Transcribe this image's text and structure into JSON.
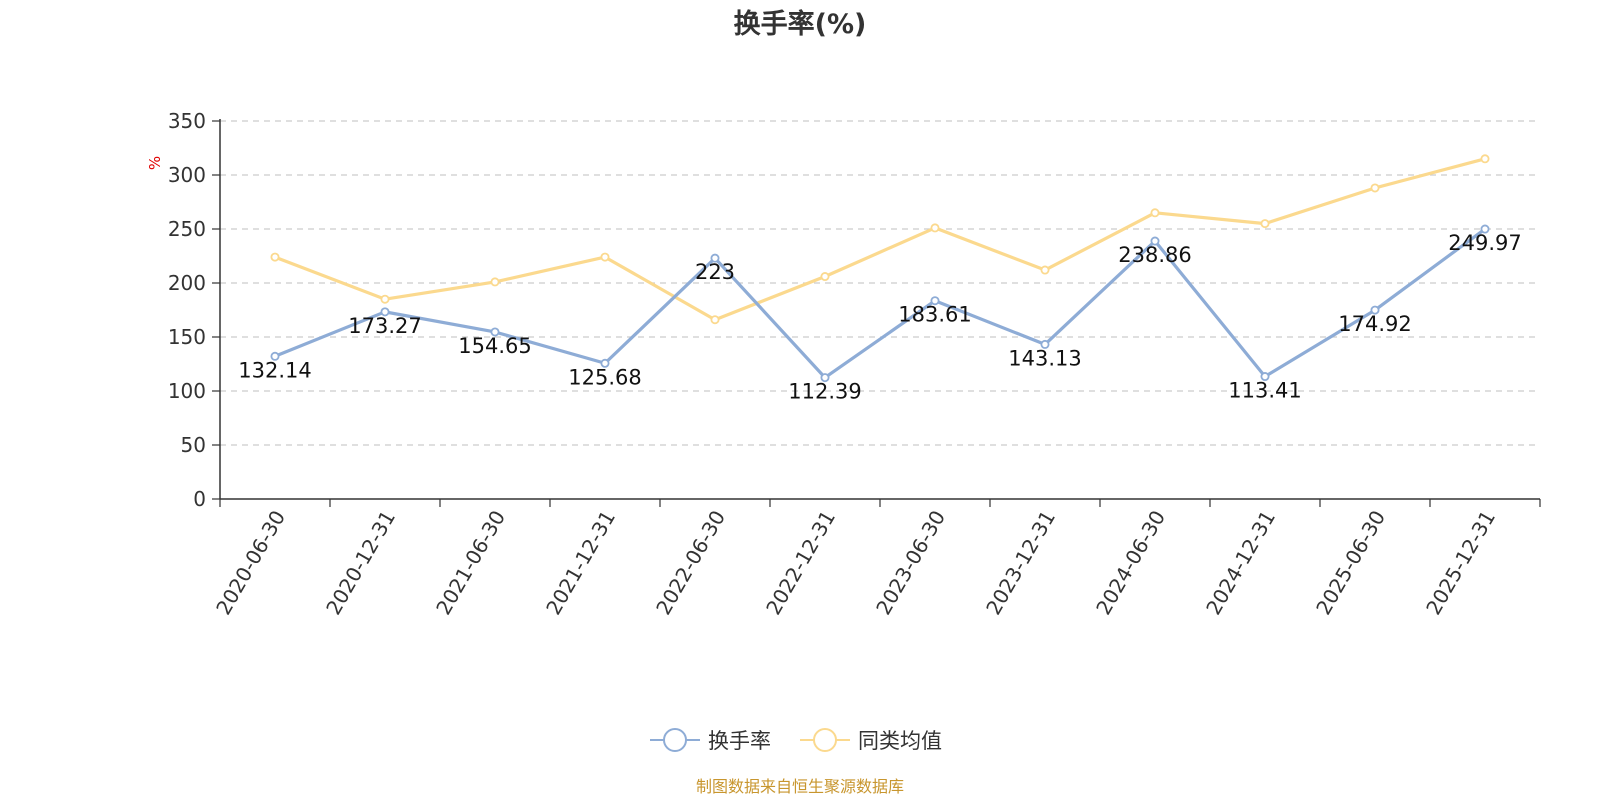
{
  "chart_data": {
    "type": "line",
    "title": "换手率(%)",
    "ylabel": "%",
    "xlabel": "",
    "ylim": [
      0,
      350
    ],
    "yticks": [
      0,
      50,
      100,
      150,
      200,
      250,
      300,
      350
    ],
    "grid": true,
    "legend_position": "bottom-center",
    "categories": [
      "2020-06-30",
      "2020-12-31",
      "2021-06-30",
      "2021-12-31",
      "2022-06-30",
      "2022-12-31",
      "2023-06-30",
      "2023-12-31",
      "2024-06-30",
      "2024-12-31",
      "2025-06-30",
      "2025-12-31"
    ],
    "series": [
      {
        "name": "换手率",
        "color": "#8eacd6",
        "show_labels": true,
        "values": [
          132.14,
          173.27,
          154.65,
          125.68,
          223,
          112.39,
          183.61,
          143.13,
          238.86,
          113.41,
          174.92,
          249.97
        ],
        "value_labels": [
          "132.14",
          "173.27",
          "154.65",
          "125.68",
          "223",
          "112.39",
          "183.61",
          "143.13",
          "238.86",
          "113.41",
          "174.92",
          "249.97"
        ]
      },
      {
        "name": "同类均值",
        "color": "#fbd98e",
        "show_labels": false,
        "values": [
          224,
          185,
          201,
          224,
          166,
          206,
          251,
          212,
          265,
          255,
          288,
          315
        ]
      }
    ],
    "source": "制图数据来自恒生聚源数据库"
  }
}
